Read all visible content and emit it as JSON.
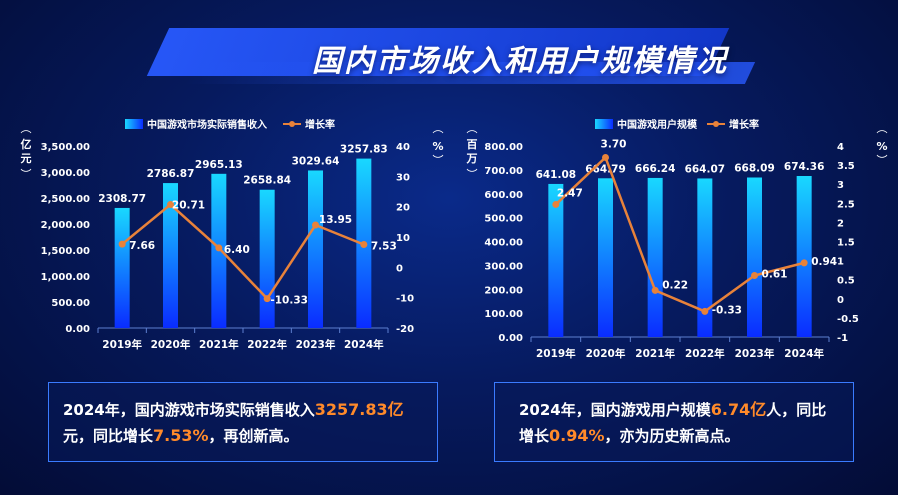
{
  "title": "国内市场收入和用户规模情况",
  "colors": {
    "bar_top": "#19d8ff",
    "bar_bottom": "#0a2cff",
    "line": "#e8823a",
    "accent": "#ff8a2a"
  },
  "chart_data": [
    {
      "type": "bar",
      "legend_bar": "中国游戏市场实际销售收入",
      "legend_line": "增长率",
      "ylabel_left": "亿元",
      "ylabel_right": "%",
      "categories": [
        "2019年",
        "2020年",
        "2021年",
        "2022年",
        "2023年",
        "2024年"
      ],
      "bar_values": [
        2308.77,
        2786.87,
        2965.13,
        2658.84,
        3029.64,
        3257.83
      ],
      "bar_labels": [
        "2308.77",
        "2786.87",
        "2965.13",
        "2658.84",
        "3029.64",
        "3257.83"
      ],
      "line_values": [
        7.66,
        20.71,
        6.4,
        -10.33,
        13.95,
        7.53
      ],
      "line_labels": [
        "7.66",
        "20.71",
        "6.40",
        "-10.33",
        "13.95",
        "7.53"
      ],
      "ylim_left": [
        0,
        3500
      ],
      "yticks_left": [
        "0.00",
        "500.00",
        "1,000.00",
        "1,500.00",
        "2,000.00",
        "2,500.00",
        "3,000.00",
        "3,500.00"
      ],
      "ylim_right": [
        -20,
        40
      ],
      "yticks_right": [
        "-20",
        "-10",
        "0",
        "10",
        "20",
        "30",
        "40"
      ]
    },
    {
      "type": "bar",
      "legend_bar": "中国游戏用户规模",
      "legend_line": "增长率",
      "ylabel_left": "百万",
      "ylabel_right": "%",
      "categories": [
        "2019年",
        "2020年",
        "2021年",
        "2022年",
        "2023年",
        "2024年"
      ],
      "bar_values": [
        641.08,
        664.79,
        666.24,
        664.07,
        668.09,
        674.36
      ],
      "bar_labels": [
        "641.08",
        "664.79",
        "666.24",
        "664.07",
        "668.09",
        "674.36"
      ],
      "line_values": [
        2.47,
        3.7,
        0.22,
        -0.33,
        0.61,
        0.94
      ],
      "line_labels": [
        "2.47",
        "3.70",
        "0.22",
        "-0.33",
        "0.61",
        "0.94"
      ],
      "ylim_left": [
        0,
        800
      ],
      "yticks_left": [
        "0.00",
        "100.00",
        "200.00",
        "300.00",
        "400.00",
        "500.00",
        "600.00",
        "700.00",
        "800.00"
      ],
      "ylim_right": [
        -1,
        4
      ],
      "yticks_right": [
        "-1",
        "-0.5",
        "0",
        "0.5",
        "1",
        "1.5",
        "2",
        "2.5",
        "3",
        "3.5",
        "4"
      ]
    }
  ],
  "summary_left": {
    "pre": "2024年，国内游戏市场实际销售收入",
    "hl1": "3257.83亿",
    "mid": "元，同比增长",
    "hl2": "7.53%",
    "post": "，再创新高。"
  },
  "summary_right": {
    "pre": "2024年，国内游戏用户规模",
    "hl1": "6.74亿",
    "mid": "人，同比增长",
    "hl2": "0.94%",
    "post": "，亦为历史新高点。"
  }
}
